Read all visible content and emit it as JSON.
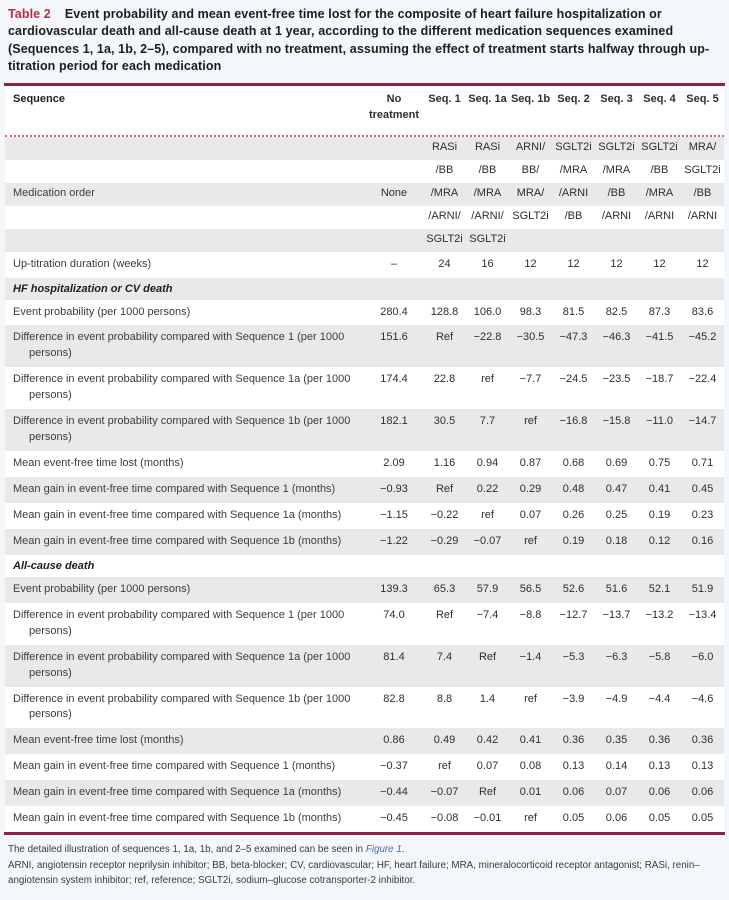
{
  "title": {
    "label": "Table 2",
    "text": "Event probability and mean event-free time lost for the composite of heart failure hospitalization or cardiovascular death and all-cause death at 1 year, according to the different medication sequences examined (Sequences 1, 1a, 1b, 2–5), compared with no treatment, assuming the effect of treatment starts halfway through up-titration period for each medication"
  },
  "colors": {
    "title_accent": "#b62e48",
    "rule": "#8b2346",
    "dotted_separator": "#d2607e",
    "stripe_gray": "#e9e9e9",
    "panel_background": "#f3f7fa",
    "link_blue": "#4a69bd"
  },
  "table": {
    "header": {
      "sequence_label": "Sequence",
      "columns": [
        "No treatment",
        "Seq. 1",
        "Seq. 1a",
        "Seq. 1b",
        "Seq. 2",
        "Seq. 3",
        "Seq. 4",
        "Seq. 5"
      ]
    },
    "medication_order": {
      "label": "Medication order",
      "lines": [
        [
          "",
          "RASi",
          "RASi",
          "ARNI/",
          "SGLT2i",
          "SGLT2i",
          "SGLT2i",
          "MRA/"
        ],
        [
          "",
          "/BB",
          "/BB",
          "BB/",
          "/MRA",
          "/MRA",
          "/BB",
          "SGLT2i"
        ],
        [
          "None",
          "/MRA",
          "/MRA",
          "MRA/",
          "/ARNI",
          "/BB",
          "/MRA",
          "/BB"
        ],
        [
          "",
          "/ARNI/",
          "/ARNI/",
          "SGLT2i",
          "/BB",
          "/ARNI",
          "/ARNI",
          "/ARNI"
        ],
        [
          "",
          "SGLT2i",
          "SGLT2i",
          "",
          "",
          "",
          "",
          ""
        ]
      ]
    },
    "up_titration": {
      "label": "Up-titration duration (weeks)",
      "values": [
        "–",
        "24",
        "16",
        "12",
        "12",
        "12",
        "12",
        "12"
      ]
    },
    "sections": [
      {
        "title": "HF hospitalization or CV death",
        "rows": [
          {
            "label": "Event probability (per 1000 persons)",
            "values": [
              "280.4",
              "128.8",
              "106.0",
              "98.3",
              "81.5",
              "82.5",
              "87.3",
              "83.6"
            ]
          },
          {
            "label": "Difference in event probability compared with Sequence 1 (per 1000 persons)",
            "values": [
              "151.6",
              "Ref",
              "−22.8",
              "−30.5",
              "−47.3",
              "−46.3",
              "−41.5",
              "−45.2"
            ]
          },
          {
            "label": "Difference in event probability compared with Sequence 1a (per 1000 persons)",
            "values": [
              "174.4",
              "22.8",
              "ref",
              "−7.7",
              "−24.5",
              "−23.5",
              "−18.7",
              "−22.4"
            ]
          },
          {
            "label": "Difference in event probability compared with Sequence 1b (per 1000 persons)",
            "values": [
              "182.1",
              "30.5",
              "7.7",
              "ref",
              "−16.8",
              "−15.8",
              "−11.0",
              "−14.7"
            ]
          },
          {
            "label": "Mean event-free time lost (months)",
            "values": [
              "2.09",
              "1.16",
              "0.94",
              "0.87",
              "0.68",
              "0.69",
              "0.75",
              "0.71"
            ]
          },
          {
            "label": "Mean gain in event-free time compared with Sequence 1 (months)",
            "values": [
              "−0.93",
              "Ref",
              "0.22",
              "0.29",
              "0.48",
              "0.47",
              "0.41",
              "0.45"
            ]
          },
          {
            "label": "Mean gain in event-free time compared with Sequence 1a (months)",
            "values": [
              "−1.15",
              "−0.22",
              "ref",
              "0.07",
              "0.26",
              "0.25",
              "0.19",
              "0.23"
            ]
          },
          {
            "label": "Mean gain in event-free time compared with Sequence 1b (months)",
            "values": [
              "−1.22",
              "−0.29",
              "−0.07",
              "ref",
              "0.19",
              "0.18",
              "0.12",
              "0.16"
            ]
          }
        ]
      },
      {
        "title": "All-cause death",
        "rows": [
          {
            "label": "Event probability (per 1000 persons)",
            "values": [
              "139.3",
              "65.3",
              "57.9",
              "56.5",
              "52.6",
              "51.6",
              "52.1",
              "51.9"
            ]
          },
          {
            "label": "Difference in event probability compared with Sequence 1 (per 1000 persons)",
            "values": [
              "74.0",
              "Ref",
              "−7.4",
              "−8.8",
              "−12.7",
              "−13.7",
              "−13.2",
              "−13.4"
            ]
          },
          {
            "label": "Difference in event probability compared with Sequence 1a (per 1000 persons)",
            "values": [
              "81.4",
              "7.4",
              "Ref",
              "−1.4",
              "−5.3",
              "−6.3",
              "−5.8",
              "−6.0"
            ]
          },
          {
            "label": "Difference in event probability compared with Sequence 1b (per 1000 persons)",
            "values": [
              "82.8",
              "8.8",
              "1.4",
              "ref",
              "−3.9",
              "−4.9",
              "−4.4",
              "−4.6"
            ]
          },
          {
            "label": "Mean event-free time lost (months)",
            "values": [
              "0.86",
              "0.49",
              "0.42",
              "0.41",
              "0.36",
              "0.35",
              "0.36",
              "0.36"
            ]
          },
          {
            "label": "Mean gain in event-free time compared with Sequence 1 (months)",
            "values": [
              "−0.37",
              "ref",
              "0.07",
              "0.08",
              "0.13",
              "0.14",
              "0.13",
              "0.13"
            ]
          },
          {
            "label": "Mean gain in event-free time compared with Sequence 1a (months)",
            "values": [
              "−0.44",
              "−0.07",
              "Ref",
              "0.01",
              "0.06",
              "0.07",
              "0.06",
              "0.06"
            ]
          },
          {
            "label": "Mean gain in event-free time compared with Sequence 1b (months)",
            "values": [
              "−0.45",
              "−0.08",
              "−0.01",
              "ref",
              "0.05",
              "0.06",
              "0.05",
              "0.05"
            ]
          }
        ]
      }
    ]
  },
  "footnotes": {
    "line1_pre": "The detailed illustration of sequences 1, 1a, 1b, and 2–5 examined can be seen in ",
    "figure_link": "Figure 1",
    "line1_post": ".",
    "abbreviations": "ARNI, angiotensin receptor neprilysin inhibitor; BB, beta-blocker; CV, cardiovascular; HF, heart failure; MRA, mineralocorticoid receptor antagonist; RASi, renin–angiotensin system inhibitor; ref, reference; SGLT2i, sodium–glucose cotransporter-2 inhibitor."
  }
}
